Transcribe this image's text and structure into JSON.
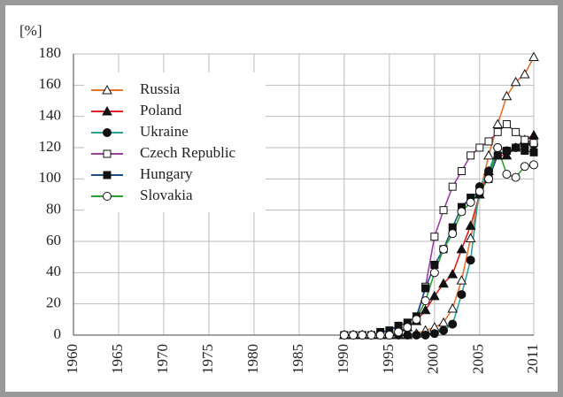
{
  "chart_data": {
    "type": "line",
    "y_label": "[%]",
    "x": [
      1990,
      1991,
      1992,
      1993,
      1994,
      1995,
      1996,
      1997,
      1998,
      1999,
      2000,
      2001,
      2002,
      2003,
      2004,
      2005,
      2006,
      2007,
      2008,
      2009,
      2010,
      2011
    ],
    "series": [
      {
        "name": "Russia",
        "color": "#e8702a",
        "marker": "triangle-open",
        "values": [
          0,
          0,
          0,
          0,
          0,
          0,
          0,
          0,
          1,
          3,
          5,
          8,
          17,
          35,
          62,
          90,
          115,
          135,
          153,
          162,
          167,
          178
        ]
      },
      {
        "name": "Poland",
        "color": "#e02020",
        "marker": "triangle",
        "values": [
          0,
          0,
          0,
          0,
          0,
          0,
          2,
          5,
          9,
          16,
          25,
          33,
          39,
          55,
          70,
          90,
          105,
          115,
          115,
          120,
          125,
          128
        ]
      },
      {
        "name": "Ukraine",
        "color": "#2aa198",
        "marker": "circle",
        "values": [
          0,
          0,
          0,
          0,
          0,
          0,
          0,
          0,
          0,
          0,
          1,
          3,
          7,
          26,
          48,
          95,
          105,
          120,
          118,
          120,
          122,
          122
        ]
      },
      {
        "name": "Czech Republic",
        "color": "#9b3fa0",
        "marker": "square-open",
        "values": [
          0,
          0,
          0,
          0,
          0,
          0,
          2,
          5,
          10,
          31,
          63,
          80,
          95,
          105,
          115,
          120,
          124,
          130,
          135,
          130,
          125,
          123
        ]
      },
      {
        "name": "Hungary",
        "color": "#1f4e8c",
        "marker": "square",
        "values": [
          0,
          0,
          0,
          0,
          2,
          3,
          6,
          8,
          12,
          30,
          45,
          55,
          69,
          82,
          88,
          92,
          100,
          115,
          118,
          120,
          118,
          117
        ]
      },
      {
        "name": "Slovakia",
        "color": "#2ca02c",
        "marker": "circle-open",
        "values": [
          0,
          0,
          0,
          0,
          0,
          0,
          2,
          5,
          10,
          22,
          40,
          55,
          65,
          79,
          85,
          92,
          100,
          120,
          103,
          101,
          108,
          109
        ]
      }
    ],
    "xlim": [
      1960,
      2011
    ],
    "xticks": [
      1960,
      1965,
      1970,
      1975,
      1980,
      1985,
      1990,
      1995,
      2000,
      2005,
      2011
    ],
    "ylim": [
      0,
      180
    ],
    "yticks": [
      0,
      20,
      40,
      60,
      80,
      100,
      120,
      140,
      160,
      180
    ],
    "grid": true
  }
}
